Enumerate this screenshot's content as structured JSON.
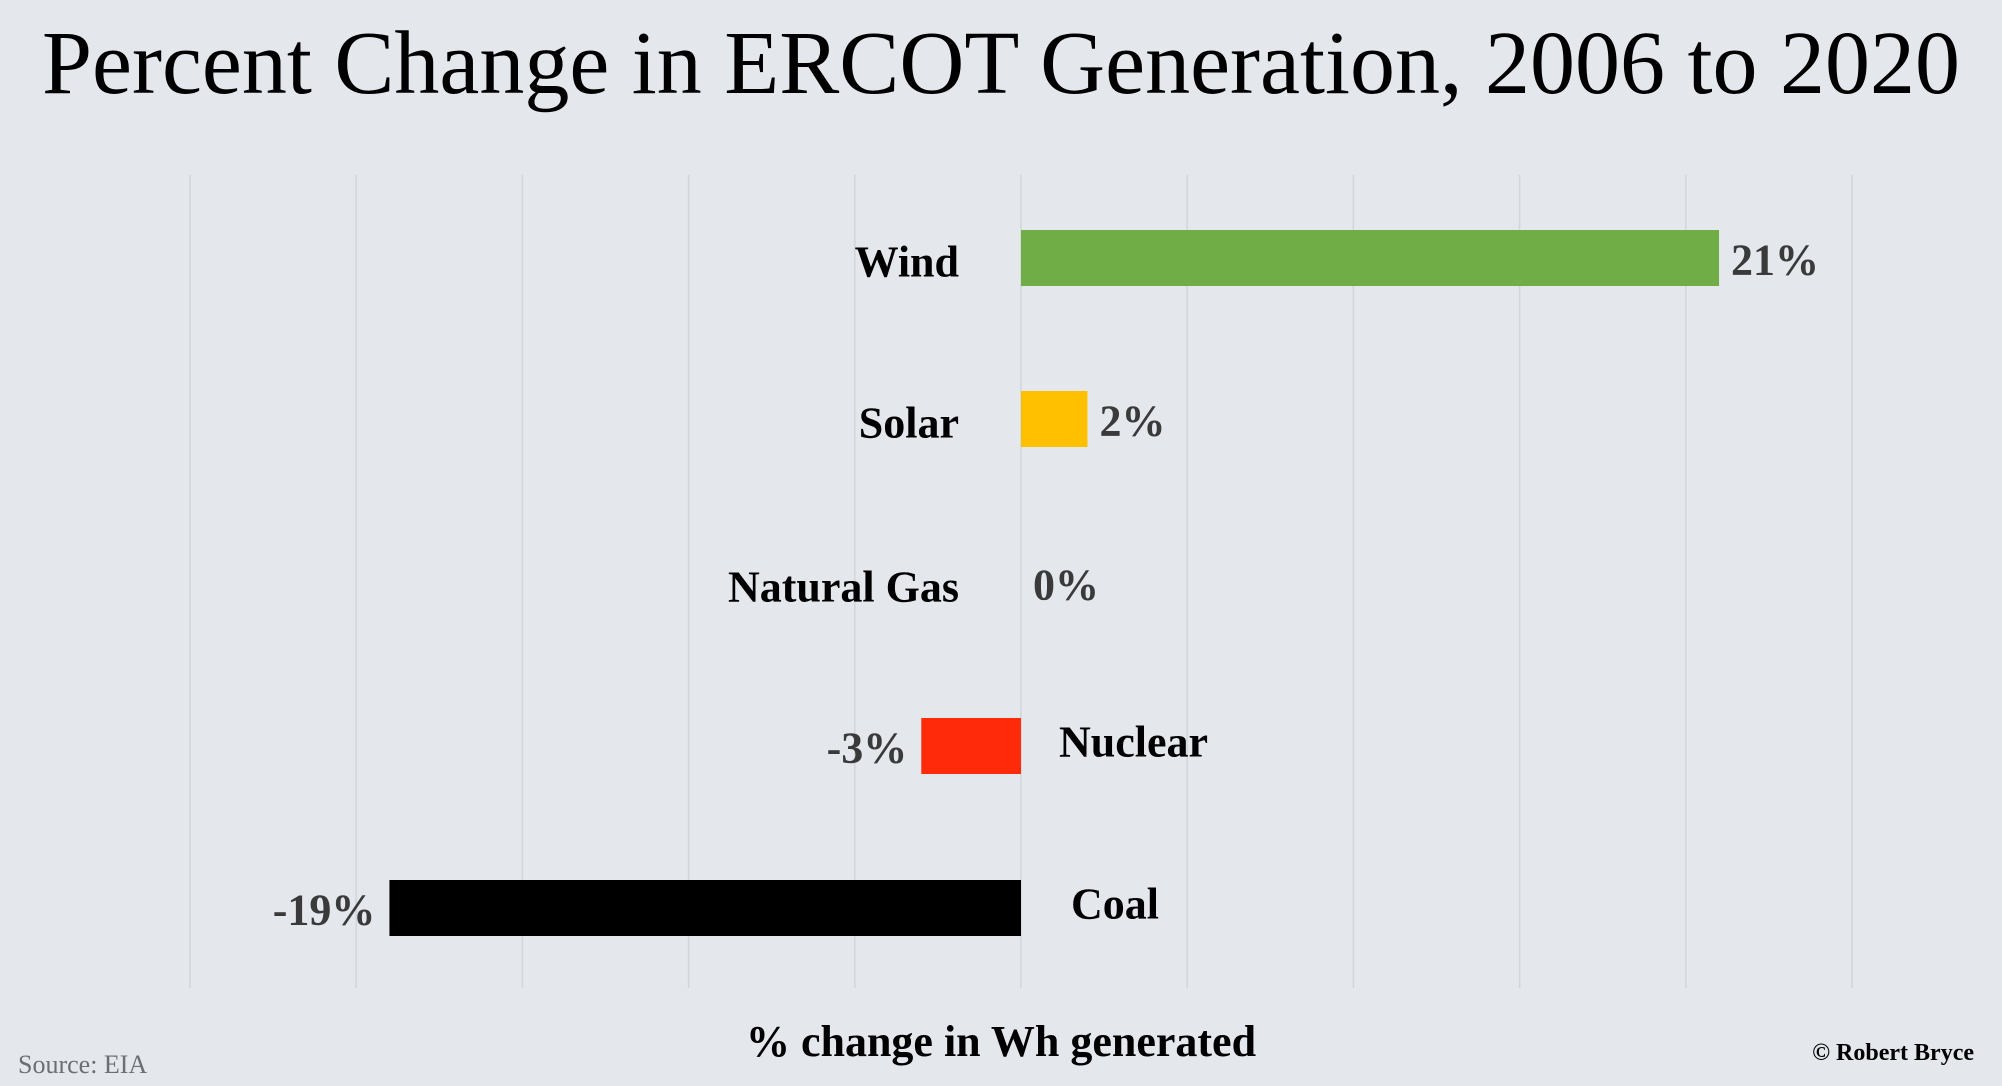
{
  "chart_data": {
    "type": "bar",
    "orientation": "horizontal",
    "title": "Percent Change in ERCOT Generation, 2006 to 2020",
    "xlabel": "% change in Wh generated",
    "ylabel": "",
    "xlim": [
      -25,
      25
    ],
    "grid": true,
    "legend": "none",
    "categories": [
      "Wind",
      "Solar",
      "Natural Gas",
      "Nuclear",
      "Coal"
    ],
    "values": [
      21,
      2,
      0,
      -3,
      -19
    ],
    "value_labels": [
      "21%",
      "2%",
      "0%",
      "-3%",
      "-19%"
    ],
    "colors": [
      "#70ad47",
      "#ffc000",
      "#a5a5a5",
      "#ff2a0a",
      "#000000"
    ]
  },
  "footer": {
    "source": "Source: EIA",
    "copyright": "© Robert Bryce"
  }
}
